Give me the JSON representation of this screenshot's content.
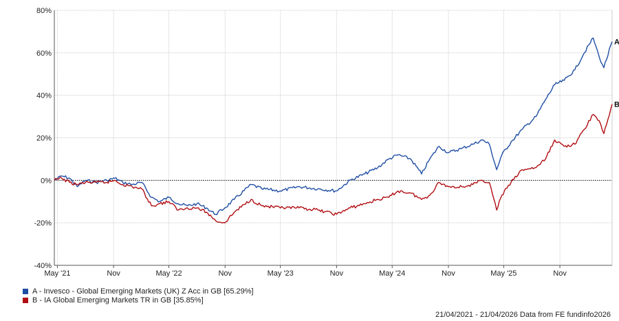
{
  "chart_data": {
    "type": "line",
    "y_unit": "%",
    "ylim": [
      -40,
      80
    ],
    "y_ticks": [
      "80%",
      "60%",
      "40%",
      "20%",
      "0%",
      "-20%",
      "-40%"
    ],
    "x_ticks": [
      "May '21",
      "Nov",
      "May '22",
      "Nov",
      "May '23",
      "Nov",
      "May '24",
      "Nov",
      "May '25",
      "Nov"
    ],
    "x_range": [
      "2021-04-21",
      "2026-04-21"
    ],
    "grid": true,
    "legend_position": "bottom-left",
    "series": [
      {
        "name": "A - Invesco - Global Emerging Markets (UK) Z Acc in GB [65.29%]",
        "end_label": "A",
        "color": "#1f4ea3",
        "points": [
          [
            "2021-04-21",
            0
          ],
          [
            "2021-05-15",
            2
          ],
          [
            "2021-06-10",
            1
          ],
          [
            "2021-07-05",
            -3
          ],
          [
            "2021-08-01",
            0
          ],
          [
            "2021-09-05",
            -1
          ],
          [
            "2021-10-10",
            0
          ],
          [
            "2021-11-05",
            1
          ],
          [
            "2021-12-01",
            -1
          ],
          [
            "2022-01-01",
            -2
          ],
          [
            "2022-02-01",
            -1
          ],
          [
            "2022-03-05",
            -8
          ],
          [
            "2022-04-01",
            -10
          ],
          [
            "2022-05-01",
            -8
          ],
          [
            "2022-06-01",
            -11
          ],
          [
            "2022-07-01",
            -12
          ],
          [
            "2022-08-01",
            -11
          ],
          [
            "2022-09-01",
            -13
          ],
          [
            "2022-10-01",
            -16
          ],
          [
            "2022-10-31",
            -13
          ],
          [
            "2022-12-01",
            -9
          ],
          [
            "2023-01-25",
            -2
          ],
          [
            "2023-03-01",
            -4
          ],
          [
            "2023-05-01",
            -5
          ],
          [
            "2023-07-01",
            -3
          ],
          [
            "2023-09-01",
            -4
          ],
          [
            "2023-11-01",
            -5
          ],
          [
            "2023-12-15",
            0
          ],
          [
            "2024-02-01",
            3
          ],
          [
            "2024-03-15",
            6
          ],
          [
            "2024-04-20",
            10
          ],
          [
            "2024-05-20",
            12
          ],
          [
            "2024-07-01",
            10
          ],
          [
            "2024-08-05",
            3
          ],
          [
            "2024-09-01",
            10
          ],
          [
            "2024-10-01",
            16
          ],
          [
            "2024-11-01",
            13
          ],
          [
            "2024-12-15",
            15
          ],
          [
            "2025-01-20",
            17
          ],
          [
            "2025-02-20",
            19
          ],
          [
            "2025-03-15",
            17
          ],
          [
            "2025-04-08",
            5
          ],
          [
            "2025-04-25",
            12
          ],
          [
            "2025-05-25",
            18
          ],
          [
            "2025-07-01",
            24
          ],
          [
            "2025-08-15",
            30
          ],
          [
            "2025-09-15",
            38
          ],
          [
            "2025-10-15",
            45
          ],
          [
            "2025-11-15",
            47
          ],
          [
            "2025-12-20",
            52
          ],
          [
            "2026-01-20",
            60
          ],
          [
            "2026-02-18",
            67
          ],
          [
            "2026-03-10",
            58
          ],
          [
            "2026-03-25",
            53
          ],
          [
            "2026-04-21",
            65.29
          ]
        ]
      },
      {
        "name": "B - IA Global Emerging Markets TR in GB [35.85%]",
        "end_label": "B",
        "color": "#b00d12",
        "points": [
          [
            "2021-04-21",
            0
          ],
          [
            "2021-05-15",
            1
          ],
          [
            "2021-06-10",
            -1
          ],
          [
            "2021-07-05",
            -2
          ],
          [
            "2021-08-01",
            -1
          ],
          [
            "2021-09-05",
            -1
          ],
          [
            "2021-10-10",
            -1
          ],
          [
            "2021-11-05",
            0
          ],
          [
            "2021-12-01",
            -2
          ],
          [
            "2022-01-01",
            -3
          ],
          [
            "2022-02-01",
            -4
          ],
          [
            "2022-03-05",
            -12
          ],
          [
            "2022-04-01",
            -11
          ],
          [
            "2022-05-01",
            -10
          ],
          [
            "2022-06-01",
            -14
          ],
          [
            "2022-07-01",
            -13
          ],
          [
            "2022-08-01",
            -13
          ],
          [
            "2022-09-01",
            -15
          ],
          [
            "2022-10-01",
            -19
          ],
          [
            "2022-10-31",
            -20
          ],
          [
            "2022-12-01",
            -15
          ],
          [
            "2023-01-25",
            -9
          ],
          [
            "2023-03-01",
            -12
          ],
          [
            "2023-05-01",
            -13
          ],
          [
            "2023-07-01",
            -13
          ],
          [
            "2023-09-01",
            -14
          ],
          [
            "2023-11-01",
            -16
          ],
          [
            "2023-12-15",
            -13
          ],
          [
            "2024-02-01",
            -11
          ],
          [
            "2024-03-15",
            -9
          ],
          [
            "2024-04-20",
            -8
          ],
          [
            "2024-05-20",
            -5
          ],
          [
            "2024-07-01",
            -6
          ],
          [
            "2024-08-05",
            -9
          ],
          [
            "2024-09-01",
            -7
          ],
          [
            "2024-10-01",
            -1
          ],
          [
            "2024-11-01",
            -3
          ],
          [
            "2024-12-15",
            -3
          ],
          [
            "2025-01-20",
            -2
          ],
          [
            "2025-02-20",
            0
          ],
          [
            "2025-03-15",
            -1
          ],
          [
            "2025-04-08",
            -14
          ],
          [
            "2025-04-25",
            -7
          ],
          [
            "2025-05-25",
            -1
          ],
          [
            "2025-07-01",
            5
          ],
          [
            "2025-08-15",
            6
          ],
          [
            "2025-09-15",
            10
          ],
          [
            "2025-10-15",
            19
          ],
          [
            "2025-11-15",
            16
          ],
          [
            "2025-12-20",
            17
          ],
          [
            "2026-01-20",
            24
          ],
          [
            "2026-02-18",
            31
          ],
          [
            "2026-03-10",
            28
          ],
          [
            "2026-03-25",
            22
          ],
          [
            "2026-04-21",
            35.85
          ]
        ]
      }
    ]
  },
  "source_text": "21/04/2021 - 21/04/2026 Data from FE fundinfo2026"
}
